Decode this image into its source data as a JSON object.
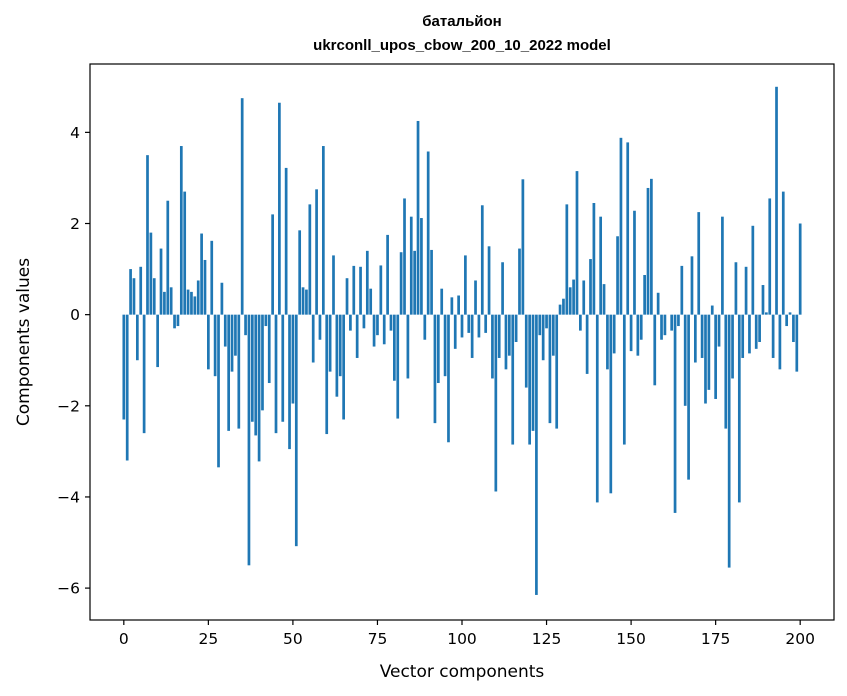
{
  "chart_data": {
    "type": "bar",
    "title_line1": "батальйон",
    "title_line2": "ukrconll_upos_cbow_200_10_2022 model",
    "xlabel": "Vector components",
    "ylabel": "Components values",
    "xlim": [
      -10,
      210
    ],
    "ylim": [
      -6.7,
      5.5
    ],
    "xticks": [
      0,
      25,
      50,
      75,
      100,
      125,
      150,
      175,
      200
    ],
    "yticks": [
      -6,
      -4,
      -2,
      0,
      2,
      4
    ],
    "ytick_labels": [
      "−6",
      "−4",
      "−2",
      "0",
      "2",
      "4"
    ],
    "bar_color": "#1f77b4",
    "values": [
      -2.3,
      -3.2,
      1.0,
      0.8,
      -1.0,
      1.05,
      -2.6,
      3.5,
      1.8,
      0.8,
      -1.15,
      1.45,
      0.5,
      2.5,
      0.6,
      -0.3,
      -0.25,
      3.7,
      2.7,
      0.55,
      0.5,
      0.4,
      0.75,
      1.78,
      1.2,
      -1.2,
      1.62,
      -1.35,
      -3.35,
      0.7,
      -0.7,
      -2.55,
      -1.25,
      -0.9,
      -2.5,
      4.75,
      -0.45,
      -5.5,
      -2.35,
      -2.65,
      -3.22,
      -2.1,
      -0.25,
      -1.5,
      2.2,
      -2.6,
      4.65,
      -2.35,
      3.22,
      -2.95,
      -1.95,
      -5.08,
      1.85,
      0.6,
      0.55,
      2.42,
      -1.05,
      2.75,
      -0.55,
      3.7,
      -2.62,
      -1.25,
      1.3,
      -1.8,
      -1.35,
      -2.3,
      0.8,
      -0.35,
      1.07,
      -0.95,
      1.05,
      -0.3,
      1.4,
      0.57,
      -0.7,
      -0.45,
      1.08,
      -0.65,
      1.75,
      -0.35,
      -1.45,
      -2.28,
      1.37,
      2.55,
      -1.4,
      2.15,
      1.4,
      4.25,
      2.12,
      -0.55,
      3.58,
      1.42,
      -2.38,
      -1.5,
      0.57,
      -1.35,
      -2.8,
      0.38,
      -0.75,
      0.42,
      -0.5,
      1.3,
      -0.4,
      -0.95,
      0.75,
      -0.5,
      2.4,
      -0.4,
      1.5,
      -1.4,
      -3.88,
      -0.95,
      1.15,
      -1.2,
      -0.9,
      -2.85,
      -0.6,
      1.45,
      2.97,
      -1.6,
      -2.85,
      -2.55,
      -6.15,
      -0.45,
      -1.0,
      -0.3,
      -2.38,
      -0.9,
      -2.5,
      0.22,
      0.35,
      2.42,
      0.6,
      0.77,
      3.15,
      -0.35,
      0.75,
      -1.3,
      1.22,
      2.45,
      -4.12,
      2.15,
      0.67,
      -1.2,
      -3.92,
      -0.85,
      1.72,
      3.88,
      -2.85,
      3.78,
      -0.8,
      2.28,
      -0.9,
      -0.55,
      0.87,
      2.78,
      2.98,
      -1.55,
      0.48,
      -0.55,
      -0.45,
      0.0,
      -0.35,
      -4.35,
      -0.25,
      1.07,
      -2.0,
      -3.62,
      1.28,
      -1.05,
      2.25,
      -0.95,
      -1.95,
      -1.65,
      0.2,
      -1.85,
      -0.7,
      2.15,
      -2.5,
      -5.55,
      -1.4,
      1.15,
      -4.12,
      -0.95,
      1.05,
      -0.85,
      1.95,
      -0.75,
      -0.6,
      0.65,
      0.05,
      2.55,
      -0.95,
      5.0,
      -1.2,
      2.7,
      -0.25,
      0.05,
      -0.6,
      -1.25,
      2.0
    ]
  }
}
